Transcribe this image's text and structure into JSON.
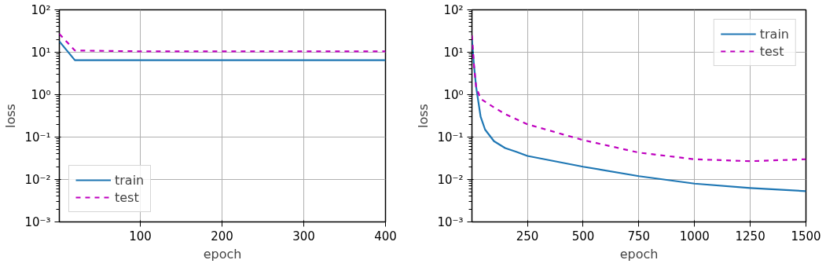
{
  "chart_data": [
    {
      "type": "line",
      "xlabel": "epoch",
      "ylabel": "loss",
      "log": "y",
      "grid": true,
      "legend": "bottom left",
      "xlim": [
        1,
        400
      ],
      "xticks": [
        100,
        200,
        300,
        400
      ],
      "ylim": [
        0.001,
        100
      ],
      "yticks": [
        {
          "value": 0.001,
          "label": "10⁻³"
        },
        {
          "value": 0.01,
          "label": "10⁻²"
        },
        {
          "value": 0.1,
          "label": "10⁻¹"
        },
        {
          "value": 1,
          "label": "10⁰"
        },
        {
          "value": 10,
          "label": "10¹"
        },
        {
          "value": 100,
          "label": "10²"
        }
      ],
      "series": [
        {
          "name": "train",
          "color": "#1f77b4",
          "line_style": "solid",
          "x": [
            1,
            20,
            100,
            200,
            300,
            400
          ],
          "values": [
            18,
            6.5,
            6.5,
            6.5,
            6.5,
            6.5
          ]
        },
        {
          "name": "test",
          "color": "#bf00bf",
          "line_style": "dashed",
          "x": [
            1,
            20,
            100,
            200,
            300,
            400
          ],
          "values": [
            27,
            11,
            10.5,
            10.5,
            10.5,
            10.5
          ]
        }
      ]
    },
    {
      "type": "line",
      "xlabel": "epoch",
      "ylabel": "loss",
      "log": "y",
      "grid": true,
      "legend": "top right",
      "xlim": [
        1,
        1500
      ],
      "xticks": [
        250,
        500,
        750,
        1000,
        1250,
        1500
      ],
      "ylim": [
        0.001,
        100
      ],
      "yticks": [
        {
          "value": 0.001,
          "label": "10⁻³"
        },
        {
          "value": 0.01,
          "label": "10⁻²"
        },
        {
          "value": 0.1,
          "label": "10⁻¹"
        },
        {
          "value": 1,
          "label": "10⁰"
        },
        {
          "value": 10,
          "label": "10¹"
        },
        {
          "value": 100,
          "label": "10²"
        }
      ],
      "series": [
        {
          "name": "train",
          "color": "#1f77b4",
          "line_style": "solid",
          "x": [
            1,
            10,
            20,
            40,
            60,
            100,
            150,
            200,
            250,
            500,
            750,
            1000,
            1250,
            1500
          ],
          "values": [
            20,
            5,
            1.5,
            0.3,
            0.15,
            0.08,
            0.055,
            0.045,
            0.036,
            0.02,
            0.012,
            0.008,
            0.0063,
            0.0053
          ]
        },
        {
          "name": "test",
          "color": "#bf00bf",
          "line_style": "dashed",
          "x": [
            1,
            10,
            20,
            40,
            100,
            150,
            250,
            500,
            750,
            1000,
            1250,
            1500
          ],
          "values": [
            25,
            5,
            1.5,
            0.8,
            0.5,
            0.35,
            0.2,
            0.085,
            0.043,
            0.03,
            0.027,
            0.03
          ]
        }
      ]
    }
  ]
}
